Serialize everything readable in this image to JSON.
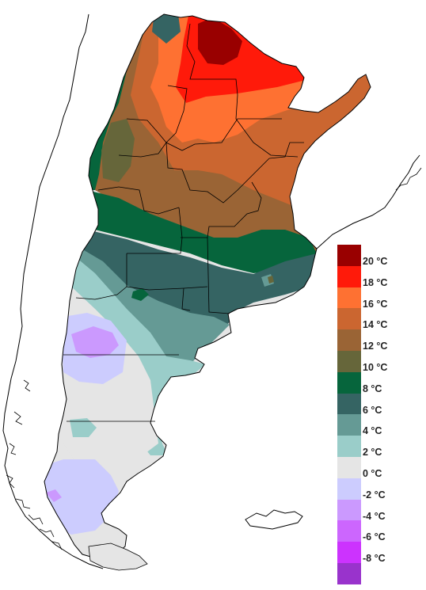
{
  "legend": {
    "items": [
      {
        "label": "20 °C",
        "color": "#990000"
      },
      {
        "label": "18 °C",
        "color": "#ff1a0a"
      },
      {
        "label": "16 °C",
        "color": "#fe7132"
      },
      {
        "label": "14 °C",
        "color": "#cb6630"
      },
      {
        "label": "12 °C",
        "color": "#9a6435"
      },
      {
        "label": "10 °C",
        "color": "#66663a"
      },
      {
        "label": "8 °C",
        "color": "#06653c"
      },
      {
        "label": "6 °C",
        "color": "#356463"
      },
      {
        "label": "4 °C",
        "color": "#659a95"
      },
      {
        "label": "2 °C",
        "color": "#9acdc9"
      },
      {
        "label": "0 °C",
        "color": "#e5e5e5"
      },
      {
        "label": "-2 °C",
        "color": "#ccccfe"
      },
      {
        "label": "-4 °C",
        "color": "#cb99fe"
      },
      {
        "label": "-6 °C",
        "color": "#cc66fe"
      },
      {
        "label": "-8 °C",
        "color": "#cc33fe"
      },
      {
        "label": "",
        "color": "#9933cc"
      }
    ]
  }
}
